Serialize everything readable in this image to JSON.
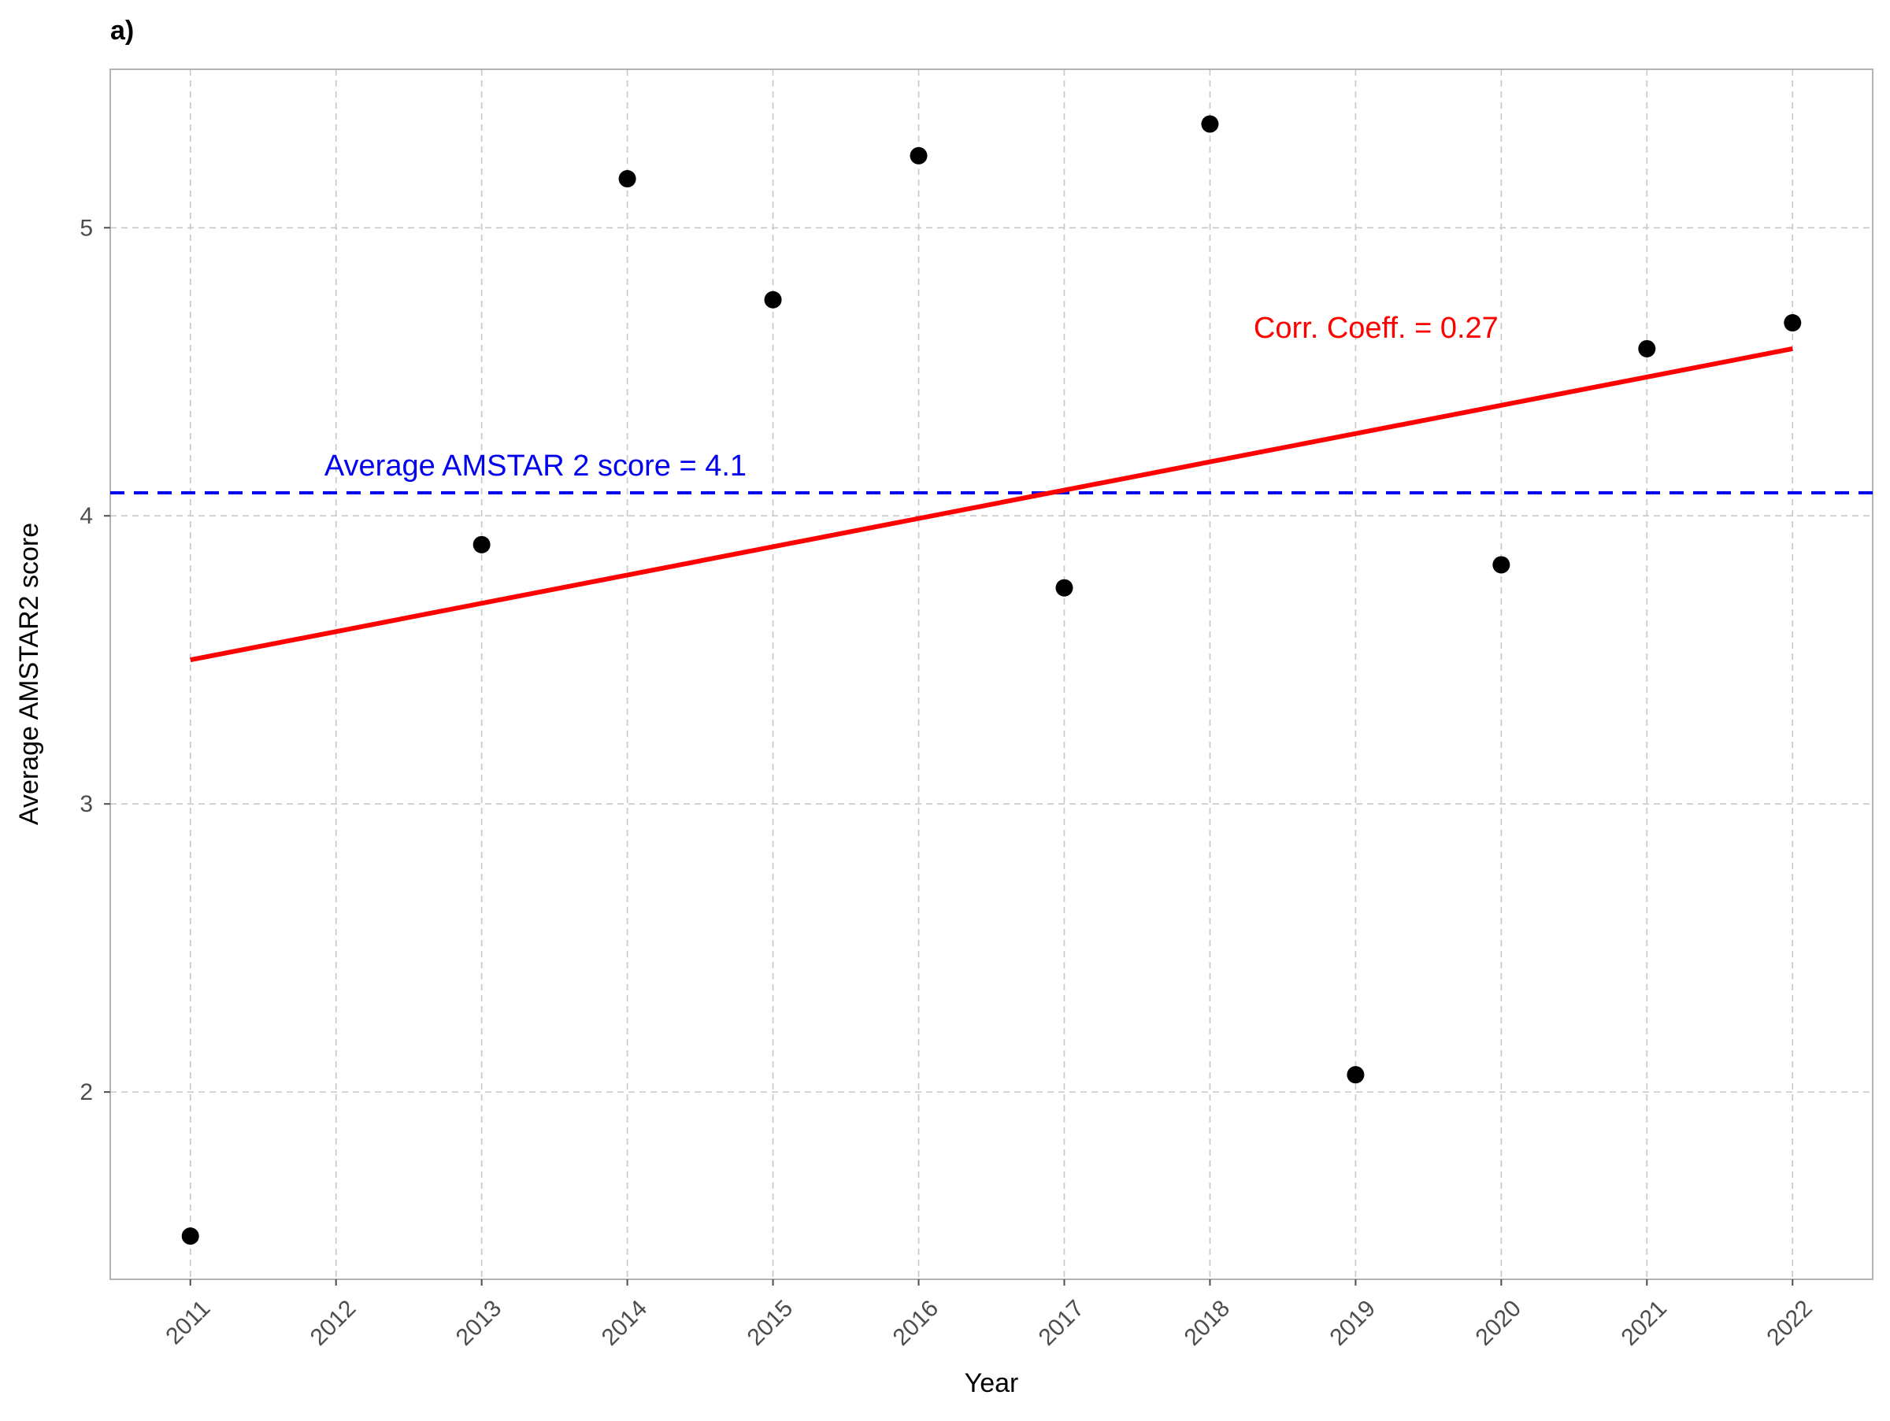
{
  "panel_label": "a)",
  "chart_data": {
    "type": "scatter",
    "xlabel": "Year",
    "ylabel": "Average AMSTAR2 score",
    "x_ticks": [
      2011,
      2012,
      2013,
      2014,
      2015,
      2016,
      2017,
      2018,
      2019,
      2020,
      2021,
      2022
    ],
    "y_ticks": [
      2,
      3,
      4,
      5
    ],
    "xlim": [
      2010.45,
      2022.55
    ],
    "ylim": [
      1.35,
      5.55
    ],
    "grid": true,
    "points": [
      {
        "x": 2011,
        "y": 1.5
      },
      {
        "x": 2013,
        "y": 3.9
      },
      {
        "x": 2014,
        "y": 5.17
      },
      {
        "x": 2015,
        "y": 4.75
      },
      {
        "x": 2016,
        "y": 5.25
      },
      {
        "x": 2017,
        "y": 3.75
      },
      {
        "x": 2018,
        "y": 5.36
      },
      {
        "x": 2019,
        "y": 2.06
      },
      {
        "x": 2020,
        "y": 3.83
      },
      {
        "x": 2021,
        "y": 4.58
      },
      {
        "x": 2022,
        "y": 4.67
      }
    ],
    "point_color": "#000000",
    "trend_line": {
      "x": [
        2011,
        2022
      ],
      "y": [
        3.5,
        4.58
      ],
      "color": "#ff0000",
      "label": "Corr. Coeff. = 0.27"
    },
    "average_line": {
      "y": 4.08,
      "color": "#0000ee",
      "style": "dashed",
      "label": "Average AMSTAR 2 score = 4.1"
    }
  }
}
